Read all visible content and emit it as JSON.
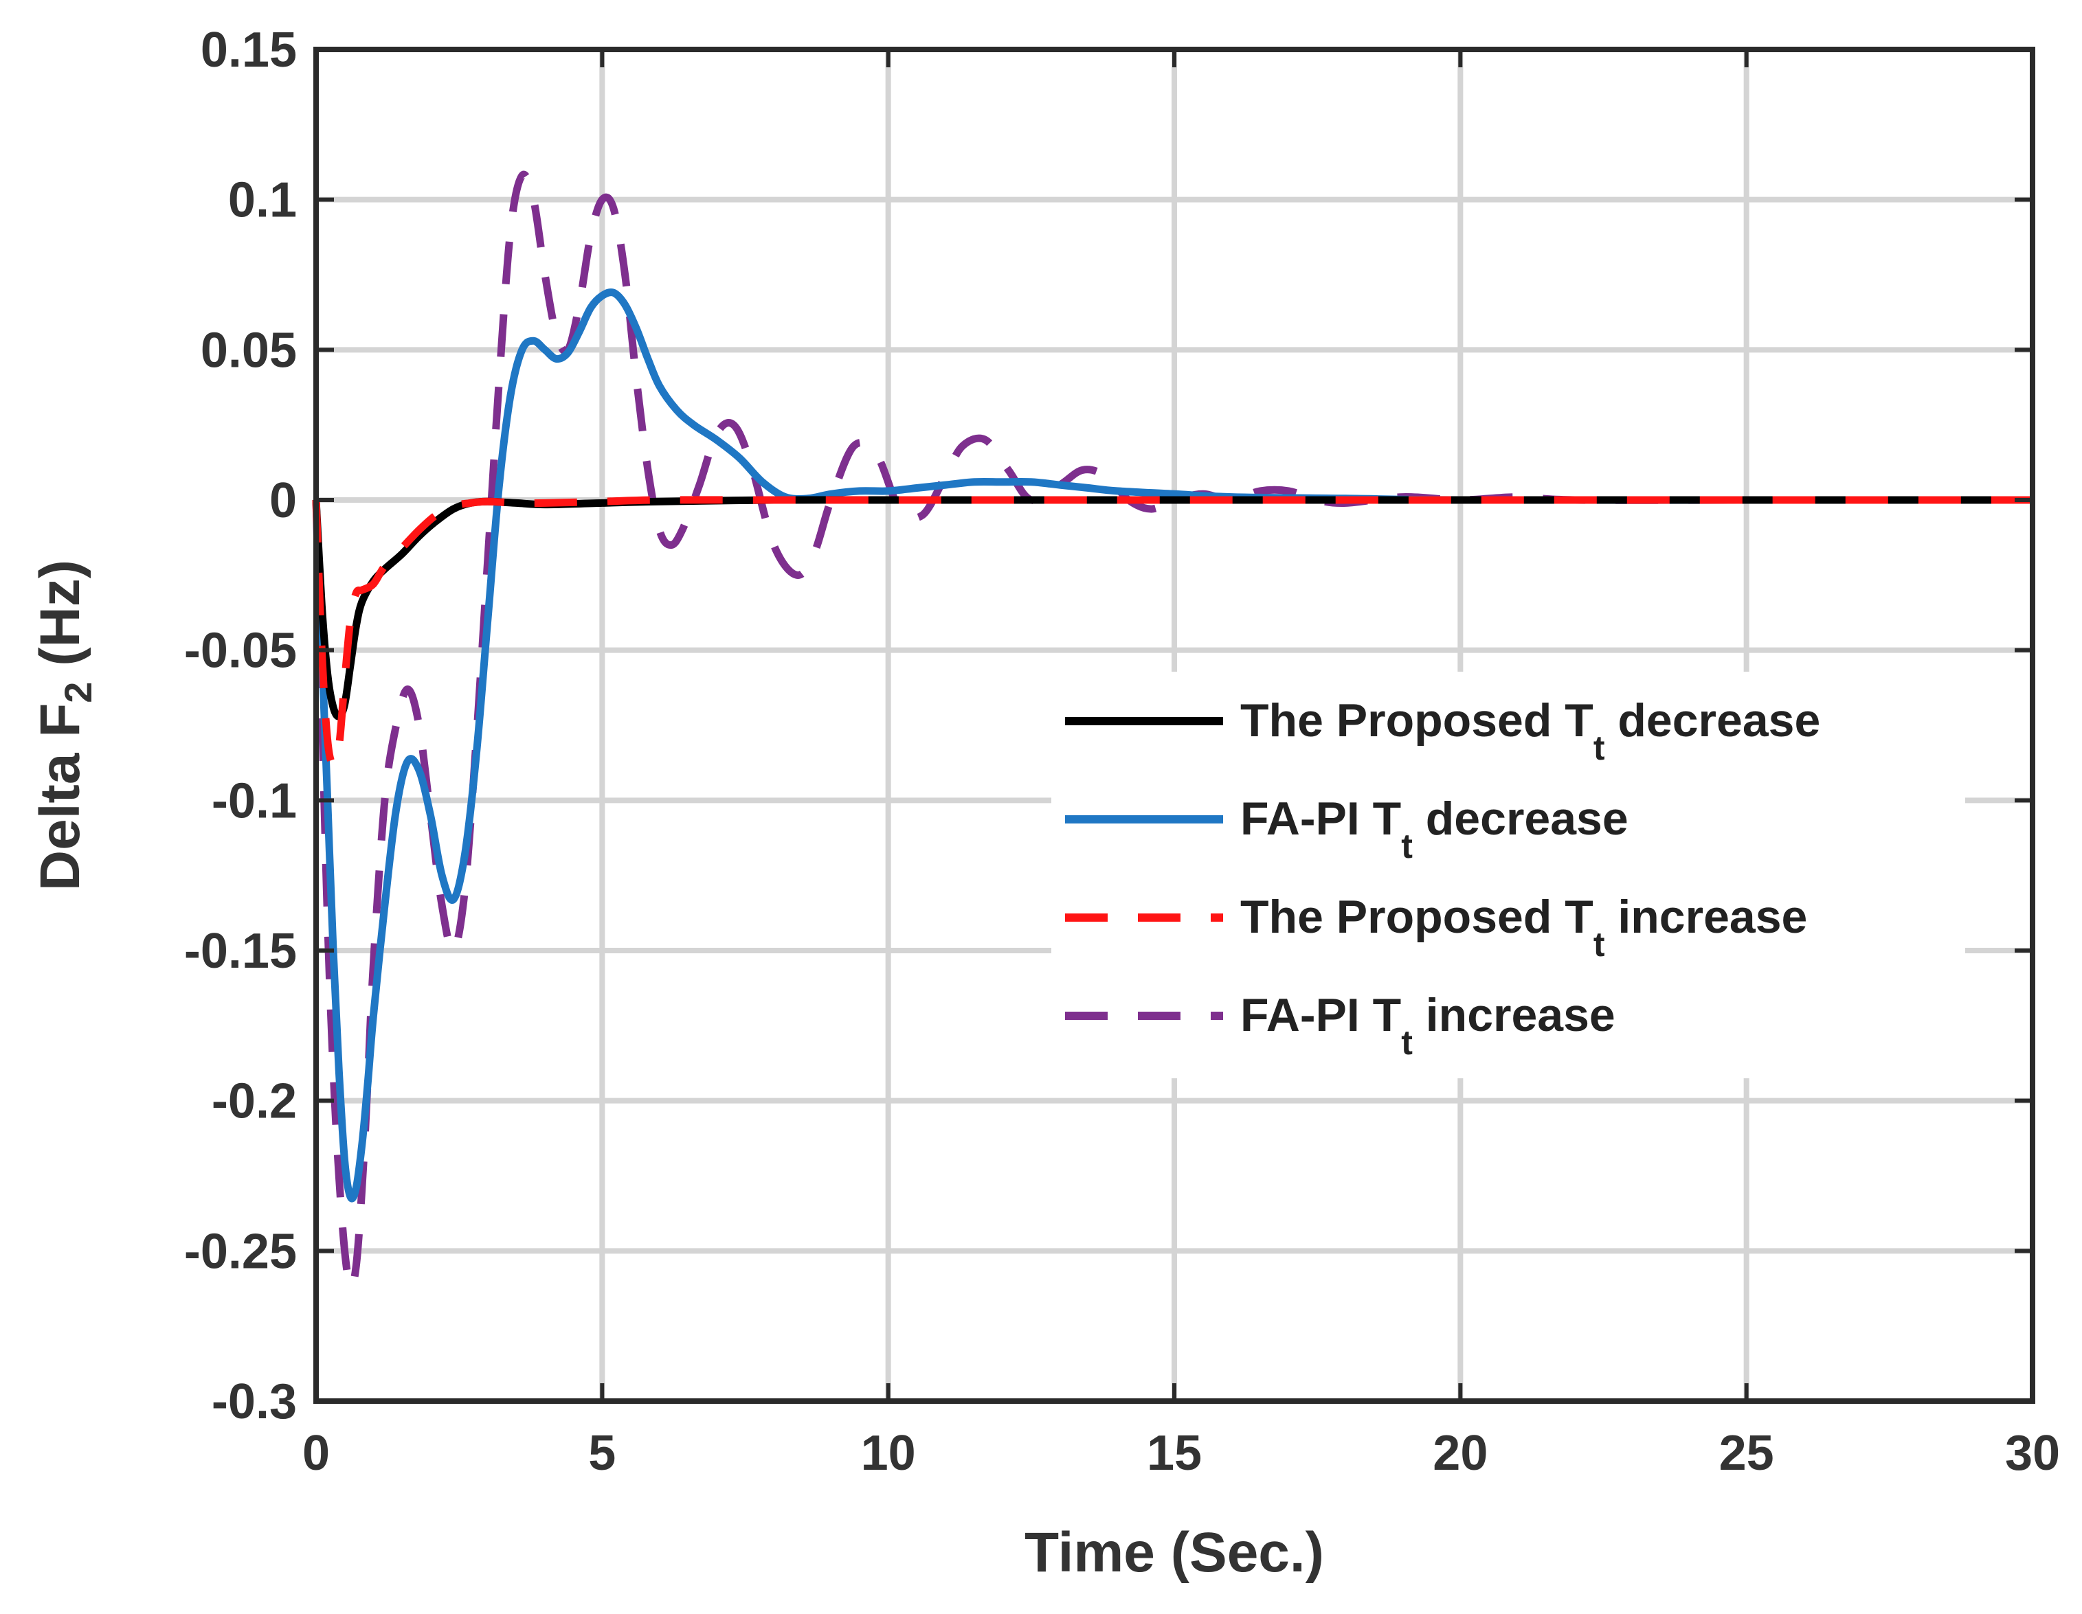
{
  "chart_data": {
    "type": "line",
    "title": "",
    "xlabel": "Time (Sec.)",
    "ylabel": "Delta F",
    "ylabel_sub": "2",
    "ylabel_unit": " (Hz)",
    "xlim": [
      0,
      30
    ],
    "ylim": [
      -0.3,
      0.15
    ],
    "grid": true,
    "legend_position": "right-middle",
    "xticks": [
      0,
      5,
      10,
      15,
      20,
      25,
      30
    ],
    "xtick_labels": [
      "0",
      "5",
      "10",
      "15",
      "20",
      "25",
      "30"
    ],
    "yticks": [
      -0.3,
      -0.25,
      -0.2,
      -0.15,
      -0.1,
      -0.05,
      0,
      0.05,
      0.1,
      0.15
    ],
    "ytick_labels": [
      "-0.3",
      "-0.25",
      "-0.2",
      "-0.15",
      "-0.1",
      "-0.05",
      "0",
      "0.05",
      "0.1",
      "0.15"
    ],
    "series": [
      {
        "name": "The Proposed T_t decrease",
        "label_main": "The Proposed T",
        "label_sub": "t",
        "label_tail": " decrease",
        "color": "#000000",
        "dash": "solid",
        "x": [
          0,
          0.1,
          0.2,
          0.3,
          0.4,
          0.5,
          0.6,
          0.7,
          0.8,
          1.0,
          1.2,
          1.5,
          1.8,
          2.1,
          2.4,
          2.7,
          3.0,
          3.5,
          4.0,
          5.0,
          6.0,
          8.0,
          10.0,
          12.0,
          15.0,
          20.0,
          25.0,
          30.0
        ],
        "y": [
          0,
          -0.035,
          -0.058,
          -0.069,
          -0.072,
          -0.068,
          -0.055,
          -0.042,
          -0.034,
          -0.027,
          -0.023,
          -0.018,
          -0.012,
          -0.007,
          -0.003,
          -0.001,
          -0.0005,
          -0.001,
          -0.0015,
          -0.001,
          -0.0005,
          0,
          0,
          0,
          0,
          0,
          0,
          0
        ]
      },
      {
        "name": "FA-PI T_t decrease",
        "label_main": "FA-PI T",
        "label_sub": "t",
        "label_tail": " decrease",
        "color": "#1f77c4",
        "dash": "solid",
        "x": [
          0,
          0.1,
          0.2,
          0.3,
          0.4,
          0.5,
          0.6,
          0.7,
          0.8,
          0.9,
          1.0,
          1.2,
          1.4,
          1.6,
          1.8,
          2.0,
          2.2,
          2.4,
          2.6,
          2.8,
          3.0,
          3.2,
          3.4,
          3.6,
          3.8,
          4.0,
          4.2,
          4.4,
          4.6,
          4.8,
          5.0,
          5.2,
          5.4,
          5.6,
          5.8,
          6.0,
          6.3,
          6.6,
          7.0,
          7.4,
          7.8,
          8.2,
          8.6,
          9.0,
          9.5,
          10.0,
          10.5,
          11.0,
          11.5,
          12.0,
          12.5,
          13.0,
          13.5,
          14.0,
          15.0,
          16.0,
          18.0,
          20.0,
          25.0,
          30.0
        ],
        "y": [
          0,
          -0.05,
          -0.1,
          -0.15,
          -0.19,
          -0.22,
          -0.232,
          -0.229,
          -0.215,
          -0.195,
          -0.172,
          -0.135,
          -0.103,
          -0.087,
          -0.09,
          -0.105,
          -0.125,
          -0.133,
          -0.118,
          -0.085,
          -0.04,
          0.005,
          0.035,
          0.05,
          0.053,
          0.05,
          0.047,
          0.049,
          0.056,
          0.064,
          0.068,
          0.069,
          0.065,
          0.057,
          0.047,
          0.038,
          0.03,
          0.025,
          0.02,
          0.014,
          0.006,
          0.001,
          0.0005,
          0.002,
          0.003,
          0.003,
          0.004,
          0.005,
          0.006,
          0.006,
          0.006,
          0.005,
          0.004,
          0.003,
          0.002,
          0.001,
          0.0005,
          0,
          0,
          0
        ]
      },
      {
        "name": "The Proposed T_t increase",
        "label_main": "The Proposed T",
        "label_sub": "t",
        "label_tail": " increase",
        "color": "#ff1414",
        "dash": "dashed",
        "x": [
          0,
          0.1,
          0.2,
          0.3,
          0.4,
          0.5,
          0.6,
          0.7,
          0.8,
          1.0,
          1.2,
          1.5,
          1.8,
          2.1,
          2.4,
          2.7,
          3.0,
          3.5,
          4.0,
          5.0,
          6.0,
          8.0,
          10.0,
          12.0,
          15.0,
          20.0,
          25.0,
          30.0
        ],
        "y": [
          0,
          -0.05,
          -0.08,
          -0.088,
          -0.082,
          -0.06,
          -0.04,
          -0.031,
          -0.03,
          -0.028,
          -0.022,
          -0.016,
          -0.01,
          -0.005,
          -0.002,
          -0.001,
          -0.0005,
          -0.001,
          -0.001,
          -0.0005,
          0,
          0,
          0,
          0,
          0,
          0,
          0,
          0
        ]
      },
      {
        "name": "FA-PI T_t increase",
        "label_main": "FA-PI T",
        "label_sub": "t",
        "label_tail": " increase",
        "color": "#7e2f8e",
        "dash": "dashed",
        "x": [
          0,
          0.1,
          0.2,
          0.3,
          0.4,
          0.5,
          0.6,
          0.7,
          0.8,
          0.9,
          1.0,
          1.2,
          1.4,
          1.6,
          1.8,
          2.0,
          2.2,
          2.4,
          2.6,
          2.8,
          3.0,
          3.2,
          3.4,
          3.6,
          3.8,
          4.0,
          4.2,
          4.4,
          4.6,
          4.8,
          5.0,
          5.2,
          5.4,
          5.6,
          5.8,
          6.0,
          6.2,
          6.4,
          6.7,
          7.0,
          7.3,
          7.6,
          8.0,
          8.4,
          8.7,
          9.0,
          9.4,
          9.8,
          10.2,
          10.6,
          11.0,
          11.3,
          11.7,
          12.1,
          12.5,
          13.0,
          13.4,
          13.8,
          14.2,
          14.6,
          15.0,
          15.5,
          16.0,
          16.5,
          17.0,
          17.5,
          18.0,
          19.0,
          20.0,
          21.0,
          22.0,
          25.0,
          30.0
        ],
        "y": [
          0,
          -0.07,
          -0.14,
          -0.19,
          -0.225,
          -0.25,
          -0.262,
          -0.255,
          -0.23,
          -0.195,
          -0.155,
          -0.1,
          -0.075,
          -0.063,
          -0.075,
          -0.105,
          -0.135,
          -0.15,
          -0.13,
          -0.08,
          -0.02,
          0.04,
          0.09,
          0.108,
          0.1,
          0.075,
          0.055,
          0.05,
          0.065,
          0.088,
          0.1,
          0.097,
          0.075,
          0.04,
          0.01,
          -0.01,
          -0.015,
          -0.01,
          0.005,
          0.022,
          0.025,
          0.012,
          -0.015,
          -0.025,
          -0.018,
          0.0,
          0.018,
          0.015,
          -0.003,
          -0.005,
          0.008,
          0.018,
          0.02,
          0.01,
          0.0,
          0.005,
          0.01,
          0.008,
          0.0,
          -0.003,
          0.0,
          0.002,
          0.0,
          0.003,
          0.003,
          0.0,
          -0.001,
          0.001,
          0.0,
          0.001,
          0.0,
          0.0,
          0.0
        ]
      }
    ]
  }
}
